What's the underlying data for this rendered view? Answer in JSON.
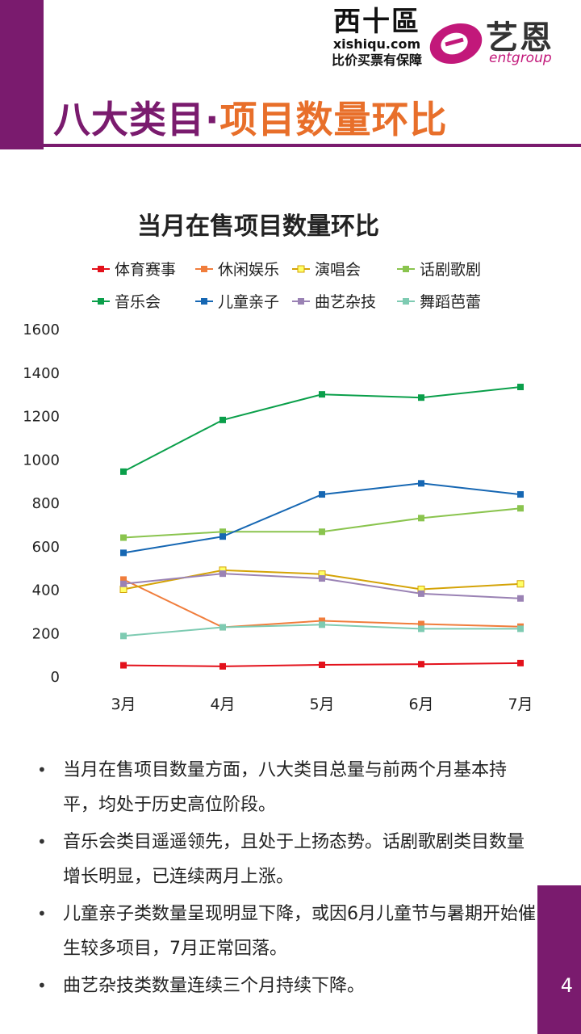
{
  "header": {
    "logo_xishiqu_cn": "西十區",
    "logo_xishiqu_en": "xishiqu.com",
    "logo_xishiqu_slogan": "比价买票有保障",
    "logo_ent_cn": "艺恩",
    "logo_ent_en": "entgroup",
    "title_part1": "八大类目·",
    "title_part2": "项目数量环比"
  },
  "colors": {
    "accent_purple": "#7a1b6e",
    "accent_orange": "#e86f2a",
    "ent_magenta": "#c2187a"
  },
  "chart_data": {
    "type": "line",
    "title": "当月在售项目数量环比",
    "categories": [
      "3月",
      "4月",
      "5月",
      "6月",
      "7月"
    ],
    "ylim": [
      0,
      1600
    ],
    "yticks": [
      0,
      200,
      400,
      600,
      800,
      1000,
      1200,
      1400,
      1600
    ],
    "legend_position": "top",
    "grid": false,
    "series": [
      {
        "name": "体育赛事",
        "color": "#e3111b",
        "values": [
          50,
          45,
          52,
          55,
          60
        ]
      },
      {
        "name": "休闲娱乐",
        "color": "#f07d3c",
        "values": [
          445,
          225,
          255,
          240,
          228
        ]
      },
      {
        "name": "演唱会",
        "color": "#d4a307",
        "values": [
          400,
          488,
          470,
          400,
          425
        ]
      },
      {
        "name": "话剧歌剧",
        "color": "#8ac44e",
        "values": [
          638,
          665,
          665,
          728,
          773
        ]
      },
      {
        "name": "音乐会",
        "color": "#0a9f4a",
        "values": [
          942,
          1180,
          1298,
          1283,
          1332
        ]
      },
      {
        "name": "儿童亲子",
        "color": "#1667b3",
        "values": [
          568,
          643,
          837,
          888,
          837
        ]
      },
      {
        "name": "曲艺杂技",
        "color": "#9a82b4",
        "values": [
          425,
          472,
          450,
          380,
          358
        ]
      },
      {
        "name": "舞蹈芭蕾",
        "color": "#7ecbb2",
        "values": [
          185,
          225,
          237,
          218,
          218
        ]
      }
    ]
  },
  "bullets": [
    "当月在售项目数量方面，八大类目总量与前两个月基本持平，均处于历史高位阶段。",
    "音乐会类目遥遥领先，且处于上扬态势。话剧歌剧类目数量增长明显，已连续两月上涨。",
    "儿童亲子类数量呈现明显下降，或因6月儿童节与暑期开始催生较多项目，7月正常回落。",
    "曲艺杂技类数量连续三个月持续下降。"
  ],
  "page_number": "4"
}
